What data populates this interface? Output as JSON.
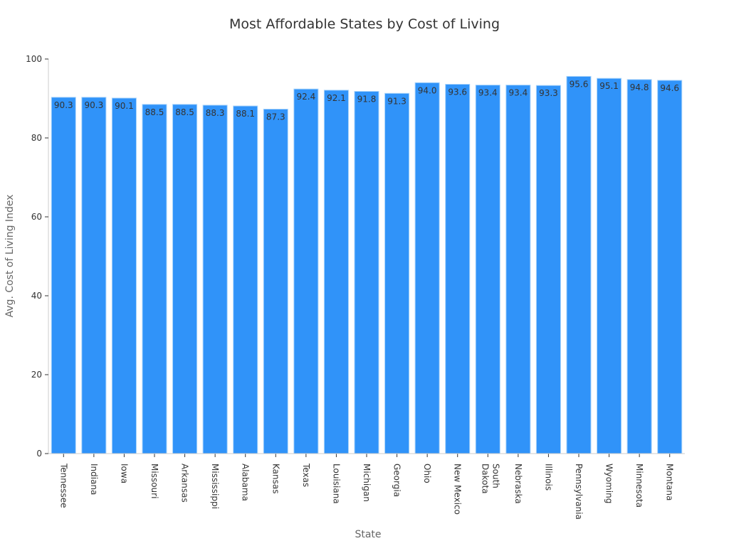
{
  "chart_data": {
    "type": "bar",
    "title": "Most Affordable States by Cost of Living",
    "xlabel": "State",
    "ylabel": "Avg. Cost of Living Index",
    "ylim": [
      0,
      100
    ],
    "yticks": [
      0,
      20,
      40,
      60,
      80,
      100
    ],
    "grid": false,
    "bar_color": "#3093f9",
    "bar_edge_color": "#a9d4fb",
    "categories": [
      "Tennessee",
      "Indiana",
      "Iowa",
      "Missouri",
      "Arkansas",
      "Mississippi",
      "Alabama",
      "Kansas",
      "Texas",
      "Louisiana",
      "Michigan",
      "Georgia",
      "Ohio",
      "New Mexico",
      "South Dakota",
      "Nebraska",
      "Illinois",
      "Pennsylvania",
      "Wyoming",
      "Minnesota",
      "Montana"
    ],
    "values": [
      90.3,
      90.3,
      90.1,
      88.5,
      88.5,
      88.3,
      88.1,
      87.3,
      92.4,
      92.1,
      91.8,
      91.3,
      94.0,
      93.6,
      93.4,
      93.4,
      93.3,
      95.6,
      95.1,
      94.8,
      94.6
    ]
  }
}
